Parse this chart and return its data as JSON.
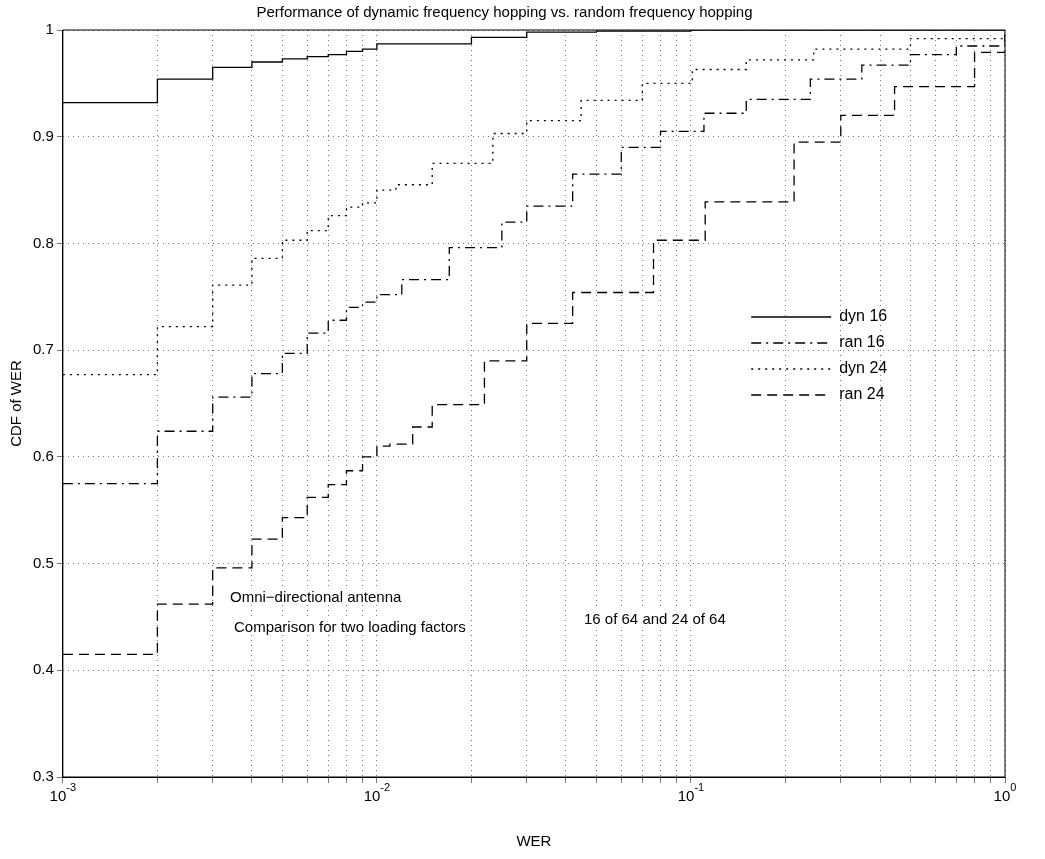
{
  "chart_data": {
    "type": "step",
    "title": "Performance of dynamic frequency hopping vs. random frequency hopping",
    "xlabel": "WER",
    "ylabel": "CDF of WER",
    "log": "x",
    "grid": true,
    "legend": "right",
    "xlim": [
      0.001,
      1
    ],
    "ylim": [
      0.3,
      1
    ],
    "xticks": [
      {
        "value": 0.001,
        "label": "10$^{-3}$"
      },
      {
        "value": 0.002,
        "label": null
      },
      {
        "value": 0.003,
        "label": null
      },
      {
        "value": 0.004,
        "label": null
      },
      {
        "value": 0.005,
        "label": null
      },
      {
        "value": 0.006,
        "label": null
      },
      {
        "value": 0.007,
        "label": null
      },
      {
        "value": 0.008,
        "label": null
      },
      {
        "value": 0.009,
        "label": null
      },
      {
        "value": 0.01,
        "label": "10$^{-2}$"
      },
      {
        "value": 0.02,
        "label": null
      },
      {
        "value": 0.03,
        "label": null
      },
      {
        "value": 0.04,
        "label": null
      },
      {
        "value": 0.05,
        "label": null
      },
      {
        "value": 0.06,
        "label": null
      },
      {
        "value": 0.07,
        "label": null
      },
      {
        "value": 0.08,
        "label": null
      },
      {
        "value": 0.09,
        "label": null
      },
      {
        "value": 0.1,
        "label": "10$^{-1}$"
      },
      {
        "value": 0.2,
        "label": null
      },
      {
        "value": 0.3,
        "label": null
      },
      {
        "value": 0.4,
        "label": null
      },
      {
        "value": 0.5,
        "label": null
      },
      {
        "value": 0.6,
        "label": null
      },
      {
        "value": 0.7,
        "label": null
      },
      {
        "value": 0.8,
        "label": null
      },
      {
        "value": 0.9,
        "label": null
      },
      {
        "value": 1,
        "label": "10$^{0}$"
      }
    ],
    "yticks": [
      0.3,
      0.4,
      0.5,
      0.6,
      0.7,
      0.8,
      0.9,
      1
    ],
    "series": [
      {
        "name": "dyn 16",
        "color": "#000000",
        "line_style": "solid",
        "x": [
          0.001,
          0.002,
          0.003,
          0.004,
          0.005,
          0.006,
          0.007,
          0.008,
          0.009,
          0.01,
          0.02,
          0.03,
          0.05,
          0.1,
          1
        ],
        "values": [
          0.932,
          0.954,
          0.965,
          0.97,
          0.973,
          0.975,
          0.977,
          0.98,
          0.982,
          0.987,
          0.993,
          0.998,
          0.999,
          1,
          1
        ]
      },
      {
        "name": "ran 16",
        "color": "#000000",
        "line_style": "dashdot",
        "x": [
          0.001,
          0.002,
          0.003,
          0.004,
          0.005,
          0.006,
          0.007,
          0.008,
          0.009,
          0.01,
          0.012,
          0.017,
          0.025,
          0.03,
          0.042,
          0.06,
          0.08,
          0.11,
          0.15,
          0.24,
          0.35,
          0.5,
          0.7,
          1
        ],
        "values": [
          0.575,
          0.624,
          0.656,
          0.678,
          0.697,
          0.716,
          0.728,
          0.74,
          0.745,
          0.752,
          0.766,
          0.796,
          0.82,
          0.835,
          0.865,
          0.89,
          0.905,
          0.922,
          0.935,
          0.954,
          0.967,
          0.977,
          0.985,
          0.995
        ]
      },
      {
        "name": "dyn 24",
        "color": "#000000",
        "line_style": "dotted",
        "x": [
          0.001,
          0.002,
          0.003,
          0.004,
          0.005,
          0.006,
          0.007,
          0.008,
          0.009,
          0.01,
          0.0115,
          0.015,
          0.0234,
          0.03,
          0.0447,
          0.07,
          0.101,
          0.15,
          0.246,
          0.5,
          1
        ],
        "values": [
          0.677,
          0.722,
          0.761,
          0.786,
          0.803,
          0.812,
          0.826,
          0.834,
          0.838,
          0.85,
          0.855,
          0.875,
          0.903,
          0.915,
          0.934,
          0.95,
          0.963,
          0.972,
          0.982,
          0.992,
          0.998
        ]
      },
      {
        "name": "ran 24",
        "color": "#000000",
        "line_style": "dashed",
        "x": [
          0.001,
          0.002,
          0.003,
          0.004,
          0.005,
          0.006,
          0.007,
          0.008,
          0.009,
          0.01,
          0.011,
          0.013,
          0.015,
          0.022,
          0.03,
          0.042,
          0.076,
          0.111,
          0.213,
          0.3,
          0.445,
          0.8,
          1
        ],
        "values": [
          0.415,
          0.462,
          0.496,
          0.523,
          0.543,
          0.562,
          0.574,
          0.587,
          0.6,
          0.61,
          0.612,
          0.628,
          0.649,
          0.69,
          0.725,
          0.754,
          0.803,
          0.839,
          0.895,
          0.92,
          0.947,
          0.979,
          0.995
        ]
      }
    ],
    "annotations": [
      "Omni−directional antenna",
      "Comparison for two loading factors",
      "16 of 64 and 24 of 64"
    ]
  }
}
